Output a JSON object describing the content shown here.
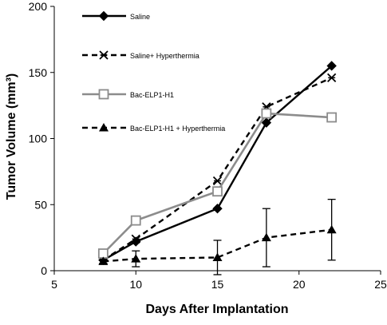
{
  "chart_data": {
    "type": "line",
    "xlabel": "Days After Implantation",
    "ylabel": "Tumor Volume (mm³)",
    "xlim": [
      5,
      25
    ],
    "ylim": [
      0,
      200
    ],
    "xticks": [
      5,
      10,
      15,
      20,
      25
    ],
    "yticks": [
      0,
      50,
      100,
      150,
      200
    ],
    "grid": false,
    "legend_position": "top-left (vertical, inside plot)",
    "series": [
      {
        "name": "Saline",
        "color": "#000000",
        "line": "solid",
        "marker": "diamond",
        "x": [
          8,
          10,
          15,
          18,
          22
        ],
        "y": [
          8,
          22,
          47,
          112,
          155
        ]
      },
      {
        "name": "Saline+ Hyperthermia",
        "color": "#000000",
        "line": "dashed",
        "marker": "asterisk",
        "x": [
          8,
          10,
          15,
          18,
          22
        ],
        "y": [
          8,
          24,
          68,
          124,
          146
        ]
      },
      {
        "name": "Bac-ELP1-H1",
        "color": "#8c8c8c",
        "line": "solid",
        "marker": "open-square",
        "x": [
          8,
          10,
          15,
          18,
          22
        ],
        "y": [
          13,
          38,
          60,
          119,
          116
        ]
      },
      {
        "name": "Bac-ELP1-H1 + Hyperthermia",
        "color": "#000000",
        "line": "dashed",
        "marker": "triangle",
        "x": [
          8,
          10,
          15,
          18,
          22
        ],
        "y": [
          7,
          9,
          10,
          25,
          31
        ],
        "error": [
          0,
          6,
          13,
          22,
          23
        ]
      }
    ]
  }
}
